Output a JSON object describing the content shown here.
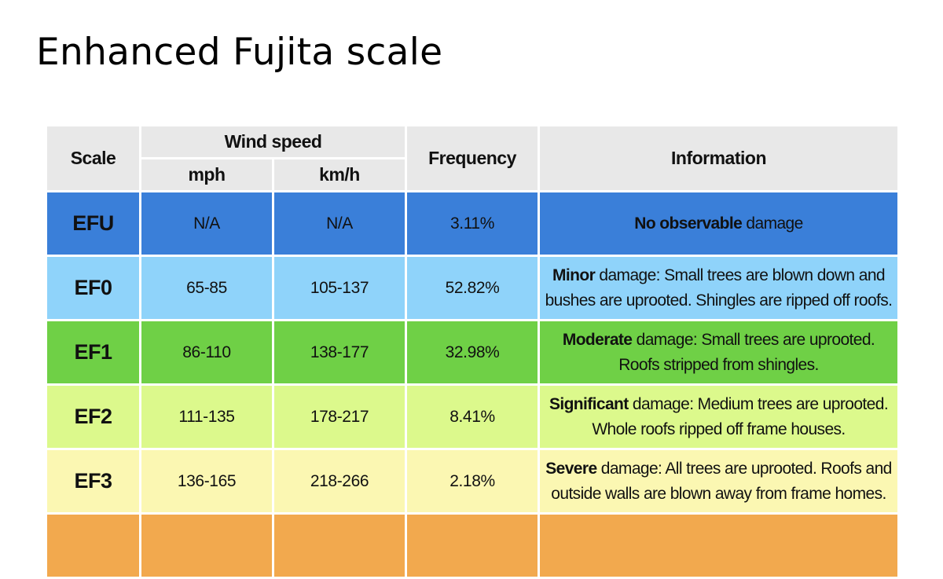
{
  "title": "Enhanced Fujita scale",
  "table": {
    "headers": {
      "scale": "Scale",
      "wind_speed": "Wind speed",
      "mph": "mph",
      "kmh": "km/h",
      "frequency": "Frequency",
      "information": "Information"
    },
    "rows": [
      {
        "scale": "EFU",
        "mph": "N/A",
        "kmh": "N/A",
        "frequency": "3.11%",
        "info_strong": "No observable",
        "info_rest": " damage",
        "color": "#3a7fd9"
      },
      {
        "scale": "EF0",
        "mph": "65-85",
        "kmh": "105-137",
        "frequency": "52.82%",
        "info_strong": "Minor",
        "info_rest": " damage: Small trees are blown down and bushes are uprooted. Shingles are ripped off roofs.",
        "color": "#8fd3fa"
      },
      {
        "scale": "EF1",
        "mph": "86-110",
        "kmh": "138-177",
        "frequency": "32.98%",
        "info_strong": "Moderate",
        "info_rest": " damage: Small trees are uprooted. Roofs stripped from shingles.",
        "color": "#6fd046"
      },
      {
        "scale": "EF2",
        "mph": "111-135",
        "kmh": "178-217",
        "frequency": "8.41%",
        "info_strong": "Significant",
        "info_rest": " damage: Medium trees are uprooted. Whole roofs ripped off frame houses.",
        "color": "#dcf98c"
      },
      {
        "scale": "EF3",
        "mph": "136-165",
        "kmh": "218-266",
        "frequency": "2.18%",
        "info_strong": "Severe",
        "info_rest": " damage: All trees are uprooted. Roofs and outside walls are blown away from frame homes.",
        "color": "#fbf7b2"
      }
    ],
    "partial_row_color": "#f2a94e"
  }
}
